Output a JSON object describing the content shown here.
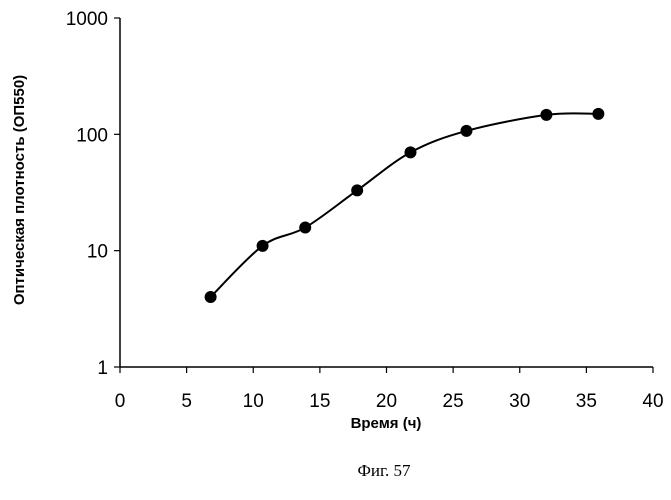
{
  "chart_data": {
    "type": "line",
    "title": "",
    "xlabel": "Время (ч)",
    "ylabel": "Оптическая плотность (ОП550)",
    "x_scale": "linear",
    "y_scale": "log",
    "xlim": [
      0,
      40
    ],
    "ylim": [
      1,
      1000
    ],
    "x_ticks": [
      0,
      5,
      10,
      15,
      20,
      25,
      30,
      35,
      40
    ],
    "x_tick_labels": [
      "0",
      "5",
      "10",
      "15",
      "20",
      "25",
      "30",
      "35",
      "40"
    ],
    "y_ticks": [
      1,
      10,
      100,
      1000
    ],
    "y_tick_labels": [
      "1",
      "10",
      "100",
      "1000"
    ],
    "grid": false,
    "legend": "none",
    "marker": "filled-circle",
    "line_style": "smooth",
    "color": "#000000",
    "series": [
      {
        "x": [
          6.8,
          10.7,
          13.9,
          17.8,
          21.8,
          26.0,
          32.0,
          35.9
        ],
        "y": [
          4.0,
          11.0,
          15.8,
          33.0,
          70.0,
          107.0,
          147.0,
          150.0
        ]
      }
    ]
  },
  "caption": "Фиг. 57"
}
